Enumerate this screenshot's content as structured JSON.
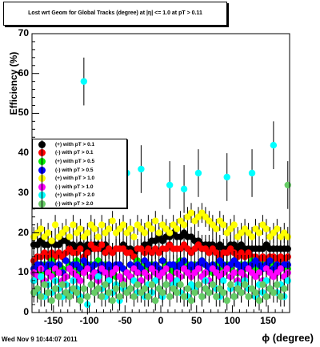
{
  "title": "Lost wrt Geom for Global Tracks (degree) at |η| <= 1.0 at pT > 0.11",
  "timestamp": "Wed Nov  9 10:44:07 2011",
  "chart_data": {
    "type": "scatter",
    "xlabel": "ϕ (degree)",
    "ylabel": "Efficiency (%)",
    "xlim": [
      -180,
      180
    ],
    "ylim": [
      0,
      70
    ],
    "x_ticks": [
      "-150",
      "-100",
      "-50",
      "0",
      "50",
      "100",
      "150"
    ],
    "y_ticks": [
      "0",
      "10",
      "20",
      "30",
      "40",
      "50",
      "60",
      "70"
    ],
    "grid": false,
    "legend_position": "middle-left",
    "series": [
      {
        "name": "(+) with pT > 0.1",
        "color": "#000000",
        "values": [
          17,
          17,
          18,
          17,
          17,
          18,
          17,
          17,
          18,
          18,
          17,
          17,
          16,
          17,
          16,
          17,
          16,
          17,
          17,
          16,
          17,
          16,
          15,
          16,
          16,
          17,
          16,
          16,
          15,
          16,
          16,
          17,
          17,
          18,
          18,
          19,
          18,
          19,
          19,
          20,
          19,
          19,
          20,
          19,
          19,
          18,
          18,
          17,
          17,
          17,
          17,
          16,
          17,
          16,
          16,
          17,
          17,
          16,
          17,
          16,
          16,
          16,
          16,
          16,
          16,
          17,
          16,
          16,
          16,
          16,
          16,
          16
        ]
      },
      {
        "name": "(-) with pT > 0.1",
        "color": "#ff0000",
        "values": [
          13,
          14,
          14,
          15,
          14,
          15,
          14,
          15,
          14,
          15,
          16,
          15,
          15,
          16,
          14,
          15,
          17,
          16,
          16,
          17,
          15,
          16,
          15,
          16,
          16,
          16,
          15,
          15,
          14,
          16,
          16,
          15,
          16,
          15,
          16,
          15,
          16,
          16,
          17,
          16,
          16,
          16,
          17,
          16,
          15,
          16,
          17,
          16,
          16,
          15,
          16,
          15,
          14,
          15,
          15,
          16,
          15,
          14,
          15,
          14,
          15,
          14,
          14,
          13,
          14,
          13,
          14,
          14,
          13,
          14,
          13,
          14
        ]
      },
      {
        "name": "(+) with pT > 0.5",
        "color": "#00ee00",
        "values": [
          11,
          12,
          10,
          12,
          11,
          13,
          10,
          12,
          11,
          9,
          12,
          11,
          13,
          10,
          12,
          11,
          12,
          10,
          13,
          11,
          12,
          10,
          11,
          9,
          12,
          11,
          10,
          12,
          11,
          13,
          10,
          12,
          11,
          12,
          10,
          11,
          13,
          12,
          11,
          10,
          12,
          13,
          11,
          12,
          10,
          12,
          11,
          13,
          12,
          11,
          10,
          12,
          13,
          11,
          12,
          11,
          13,
          10,
          12,
          11,
          12,
          13,
          11,
          10,
          12,
          11,
          13,
          12,
          10,
          11,
          12,
          11
        ]
      },
      {
        "name": "(-) with pT > 0.5",
        "color": "#0000ff",
        "values": [
          11,
          12,
          12,
          11,
          12,
          12,
          11,
          12,
          10,
          13,
          11,
          12,
          12,
          11,
          13,
          12,
          11,
          12,
          10,
          12,
          11,
          12,
          11,
          12,
          12,
          11,
          10,
          12,
          11,
          12,
          11,
          13,
          12,
          11,
          12,
          11,
          13,
          11,
          12,
          12,
          11,
          12,
          13,
          11,
          12,
          11,
          12,
          13,
          12,
          11,
          12,
          11,
          13,
          12,
          11,
          12,
          13,
          12,
          11,
          12,
          11,
          12,
          13,
          12,
          11,
          12,
          13,
          11,
          12,
          11,
          12,
          12
        ]
      },
      {
        "name": "(+) with pT > 1.0",
        "color": "#ffff00",
        "values": [
          19,
          20,
          21,
          19,
          20,
          18,
          22,
          19,
          20,
          21,
          19,
          22,
          20,
          21,
          19,
          20,
          22,
          21,
          19,
          22,
          20,
          21,
          23,
          20,
          21,
          22,
          20,
          21,
          19,
          22,
          21,
          20,
          22,
          21,
          23,
          20,
          22,
          21,
          20,
          22,
          21,
          23,
          22,
          24,
          25,
          23,
          24,
          25,
          24,
          23,
          22,
          21,
          23,
          22,
          20,
          21,
          22,
          19,
          20,
          21,
          20,
          19,
          21,
          20,
          22,
          21,
          19,
          20,
          21,
          19,
          20,
          19
        ]
      },
      {
        "name": "(-) with pT > 1.0",
        "color": "#ff00ff",
        "values": [
          10,
          9,
          11,
          8,
          10,
          9,
          11,
          10,
          8,
          9,
          11,
          10,
          9,
          8,
          10,
          11,
          9,
          10,
          8,
          11,
          10,
          9,
          10,
          11,
          9,
          8,
          10,
          9,
          11,
          10,
          8,
          10,
          9,
          11,
          10,
          9,
          10,
          11,
          9,
          8,
          10,
          9,
          11,
          10,
          9,
          10,
          11,
          9,
          10,
          8,
          11,
          10,
          9,
          10,
          11,
          9,
          10,
          8,
          10,
          9,
          11,
          10,
          9,
          10,
          8,
          11,
          10,
          9,
          10,
          11,
          9,
          10
        ]
      },
      {
        "name": "(+) with pT > 2.0",
        "color": "#00ffff",
        "values": [
          8,
          5,
          9,
          4,
          7,
          5,
          8,
          6,
          4,
          7,
          5,
          8,
          6,
          4,
          58,
          2,
          7,
          5,
          9,
          6,
          4,
          8,
          5,
          7,
          3,
          6,
          35,
          6,
          8,
          5,
          36,
          4,
          7,
          5,
          8,
          6,
          4,
          7,
          32,
          7,
          8,
          5,
          31,
          4,
          7,
          6,
          35,
          4,
          8,
          5,
          7,
          6,
          4,
          8,
          34,
          6,
          4,
          7,
          5,
          8,
          6,
          35,
          4,
          7,
          5,
          8,
          6,
          42,
          5,
          7,
          4,
          8
        ]
      },
      {
        "name": "(-) with pT > 2.0",
        "color": "#66cc66",
        "values": [
          5,
          6,
          4,
          7,
          5,
          3,
          6,
          4,
          7,
          5,
          4,
          6,
          5,
          3,
          6,
          4,
          7,
          5,
          6,
          4,
          7,
          5,
          3,
          6,
          4,
          7,
          5,
          6,
          4,
          7,
          5,
          6,
          4,
          7,
          3,
          6,
          5,
          7,
          4,
          6,
          5,
          7,
          4,
          6,
          3,
          5,
          7,
          4,
          6,
          5,
          7,
          4,
          6,
          5,
          3,
          7,
          4,
          6,
          5,
          7,
          4,
          6,
          5,
          3,
          7,
          4,
          6,
          5,
          7,
          4,
          6,
          32
        ]
      }
    ]
  }
}
